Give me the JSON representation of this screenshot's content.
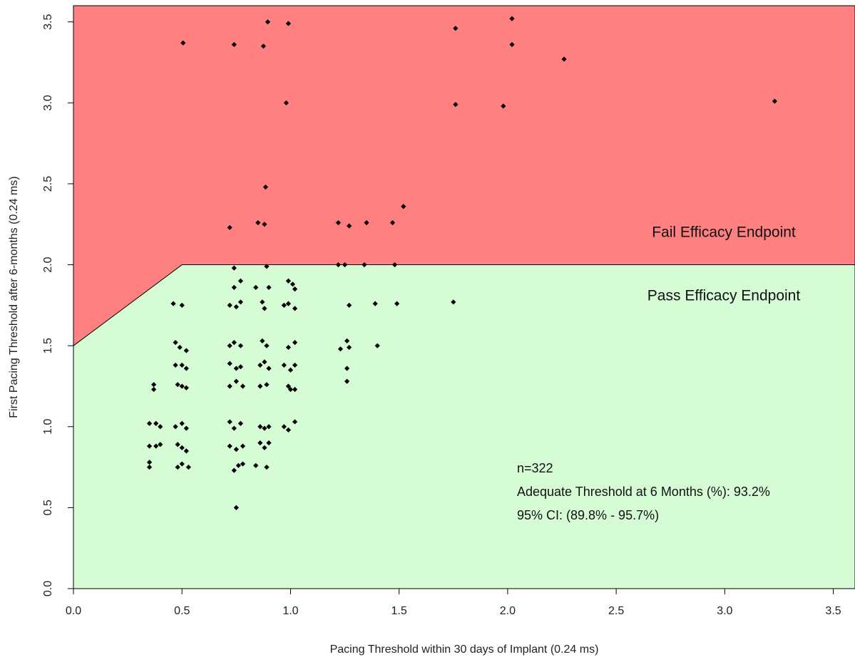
{
  "chart_data": {
    "type": "scatter",
    "x_label": "Pacing Threshold within 30 days of Implant (0.24 ms)",
    "y_label": "First Pacing Threshold after 6-months (0.24 ms)",
    "xlim": [
      0,
      3.6
    ],
    "ylim": [
      0,
      3.6
    ],
    "xticks": [
      {
        "value": 0,
        "label": "0.0"
      },
      0.5,
      {
        "value": 1,
        "label": "1.0"
      },
      1.5,
      {
        "value": 2,
        "label": "2.0"
      },
      2.5,
      {
        "value": 3,
        "label": "3.0"
      },
      3.5
    ],
    "yticks": [
      {
        "value": 0,
        "label": "0.0"
      },
      0.5,
      {
        "value": 1,
        "label": "1.0"
      },
      1.5,
      {
        "value": 2,
        "label": "2.0"
      },
      2.5,
      {
        "value": 3,
        "label": "3.0"
      },
      3.5
    ],
    "boundary": {
      "x": [
        0,
        0.5
      ],
      "y": [
        1.5,
        2.0
      ]
    },
    "regions": [
      {
        "label": "Fail Efficacy Endpoint",
        "color": "#ff8080"
      },
      {
        "label": "Pass Efficacy Endpoint",
        "color": "#d6fcd6"
      }
    ],
    "annotations": [
      "n=322",
      "Adequate Threshold at 6 Months (%): 93.2%",
      "95% CI: (89.8% - 95.7%)"
    ],
    "color": "#000000",
    "x": [
      0.505,
      0.74,
      0.875,
      0.895,
      0.99,
      0.98,
      1.76,
      2.02,
      2.02,
      2.26,
      1.76,
      1.98,
      3.23,
      0.885,
      0.72,
      0.85,
      0.88,
      1.22,
      1.27,
      1.35,
      1.47,
      1.52,
      1.22,
      1.25,
      1.34,
      1.48,
      0.74,
      0.89,
      0.99,
      0.77,
      0.74,
      0.84,
      0.9,
      1.01,
      1.02,
      0.46,
      0.5,
      0.72,
      0.75,
      0.77,
      0.87,
      0.88,
      0.97,
      0.99,
      1.02,
      1.27,
      1.39,
      1.49,
      1.75,
      1.23,
      1.26,
      1.27,
      1.4,
      1.26,
      1.26,
      0.37,
      0.37,
      0.35,
      0.38,
      0.4,
      0.35,
      0.38,
      0.4,
      0.35,
      0.35,
      0.47,
      0.49,
      0.52,
      0.47,
      0.5,
      0.52,
      0.48,
      0.5,
      0.52,
      0.47,
      0.5,
      0.52,
      0.48,
      0.5,
      0.52,
      0.48,
      0.5,
      0.53,
      0.72,
      0.74,
      0.77,
      0.72,
      0.75,
      0.77,
      0.72,
      0.75,
      0.78,
      0.72,
      0.74,
      0.77,
      0.72,
      0.75,
      0.78,
      0.74,
      0.76,
      0.78,
      0.75,
      0.87,
      0.89,
      0.86,
      0.88,
      0.9,
      0.86,
      0.89,
      0.86,
      0.88,
      0.9,
      0.86,
      0.88,
      0.9,
      0.84,
      0.89,
      0.99,
      1.02,
      0.97,
      1.0,
      1.02,
      0.99,
      1.0,
      1.02,
      0.97,
      0.99,
      1.02
    ],
    "y": [
      3.37,
      3.36,
      3.35,
      3.5,
      3.49,
      3.0,
      3.46,
      3.52,
      3.36,
      3.27,
      2.99,
      2.98,
      3.01,
      2.48,
      2.23,
      2.26,
      2.25,
      2.26,
      2.24,
      2.26,
      2.26,
      2.36,
      2.0,
      2.0,
      2.0,
      2.0,
      1.98,
      1.99,
      1.9,
      1.9,
      1.86,
      1.86,
      1.86,
      1.88,
      1.85,
      1.76,
      1.75,
      1.75,
      1.74,
      1.77,
      1.77,
      1.73,
      1.75,
      1.76,
      1.73,
      1.75,
      1.76,
      1.76,
      1.77,
      1.48,
      1.53,
      1.49,
      1.5,
      1.36,
      1.28,
      1.26,
      1.23,
      1.02,
      1.02,
      1.0,
      0.88,
      0.88,
      0.89,
      0.78,
      0.75,
      1.52,
      1.49,
      1.47,
      1.38,
      1.38,
      1.36,
      1.26,
      1.25,
      1.24,
      1.0,
      1.02,
      0.99,
      0.89,
      0.87,
      0.85,
      0.75,
      0.77,
      0.75,
      1.5,
      1.52,
      1.5,
      1.39,
      1.36,
      1.37,
      1.25,
      1.28,
      1.25,
      1.03,
      0.99,
      1.02,
      0.88,
      0.86,
      0.88,
      0.73,
      0.76,
      0.77,
      0.5,
      1.53,
      1.5,
      1.38,
      1.4,
      1.36,
      1.25,
      1.26,
      1.0,
      0.99,
      1.0,
      0.9,
      0.87,
      0.9,
      0.76,
      0.75,
      1.49,
      1.52,
      1.38,
      1.35,
      1.38,
      1.25,
      1.23,
      1.23,
      1.0,
      0.98,
      1.03
    ]
  }
}
